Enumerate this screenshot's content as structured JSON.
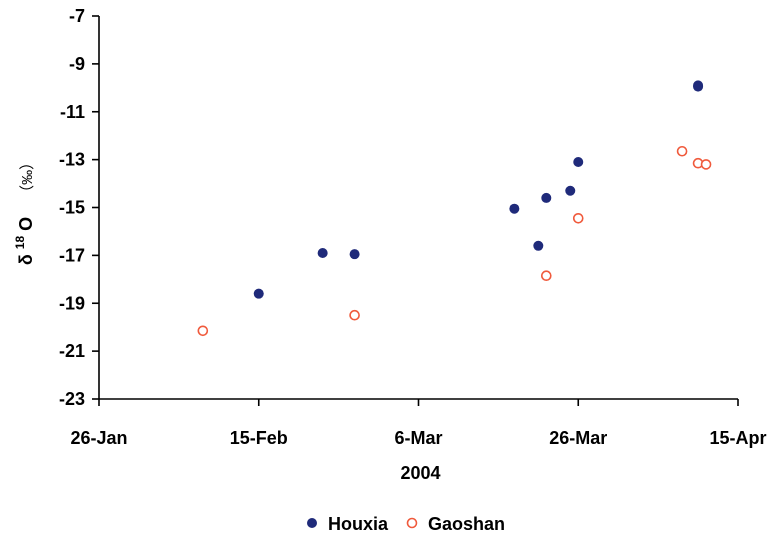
{
  "chart_data": {
    "type": "scatter",
    "title": "",
    "xlabel": "2004",
    "ylabel_main": "δ",
    "ylabel_sup": "18",
    "ylabel_rest": "O",
    "ylabel_unit": "（‰）",
    "x_type": "date",
    "xlim": [
      "2004-01-26",
      "2004-04-15"
    ],
    "ylim": [
      -23,
      -7
    ],
    "x_tick_values": [
      "2004-01-26",
      "2004-02-15",
      "2004-03-06",
      "2004-03-26",
      "2004-04-15"
    ],
    "x_tick_labels": [
      "26-Jan",
      "15-Feb",
      "6-Mar",
      "26-Mar",
      "15-Apr"
    ],
    "y_tick_values": [
      -7,
      -9,
      -11,
      -13,
      -15,
      -17,
      -19,
      -21,
      -23
    ],
    "y_tick_labels": [
      "-7",
      "-9",
      "-11",
      "-13",
      "-15",
      "-17",
      "-19",
      "-21",
      "-23"
    ],
    "grid": false,
    "legend_position": "bottom",
    "series": [
      {
        "name": "Houxia",
        "marker": "filled-circle",
        "color": "#1f2a7a",
        "points": [
          {
            "x": "2004-02-15",
            "y": -18.6
          },
          {
            "x": "2004-02-23",
            "y": -16.9
          },
          {
            "x": "2004-02-27",
            "y": -16.95
          },
          {
            "x": "2004-03-18",
            "y": -15.05
          },
          {
            "x": "2004-03-21",
            "y": -16.6
          },
          {
            "x": "2004-03-22",
            "y": -14.6
          },
          {
            "x": "2004-03-25",
            "y": -14.3
          },
          {
            "x": "2004-03-26",
            "y": -13.1
          },
          {
            "x": "2004-04-10",
            "y": -9.95
          },
          {
            "x": "2004-04-10",
            "y": -9.9
          }
        ]
      },
      {
        "name": "Gaoshan",
        "marker": "open-circle",
        "color": "#f05a3c",
        "points": [
          {
            "x": "2004-02-08",
            "y": -20.15
          },
          {
            "x": "2004-02-27",
            "y": -19.5
          },
          {
            "x": "2004-03-22",
            "y": -17.85
          },
          {
            "x": "2004-03-26",
            "y": -15.45
          },
          {
            "x": "2004-04-08",
            "y": -12.65
          },
          {
            "x": "2004-04-10",
            "y": -13.15
          },
          {
            "x": "2004-04-11",
            "y": -13.2
          }
        ]
      }
    ]
  }
}
